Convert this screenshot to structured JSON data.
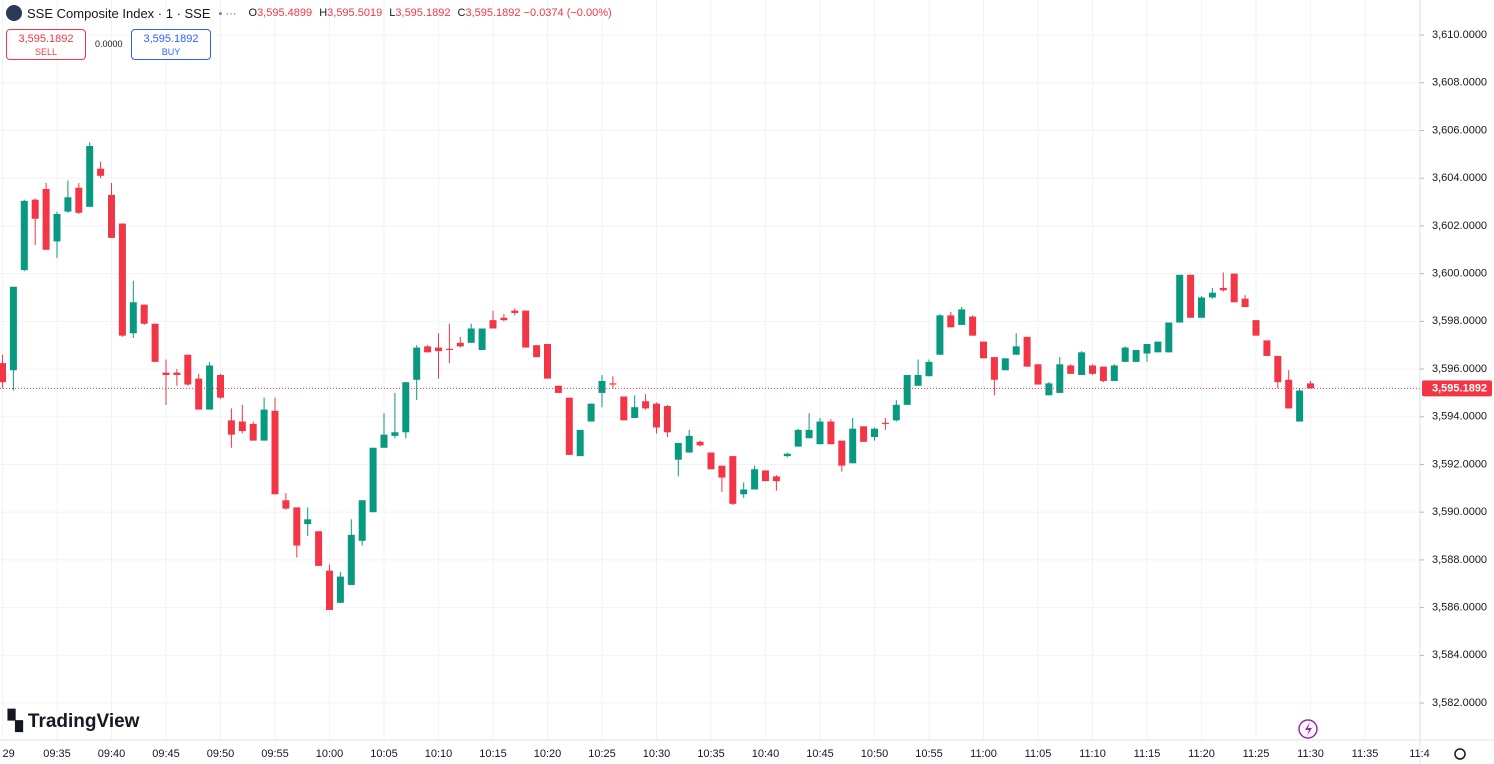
{
  "header": {
    "title": "SSE Composite Index · 1 · SSE",
    "ohlc": [
      {
        "key": "O",
        "value": "3,595.4899"
      },
      {
        "key": "H",
        "value": "3,595.5019"
      },
      {
        "key": "L",
        "value": "3,595.1892"
      },
      {
        "key": "C",
        "value": "3,595.1892"
      }
    ],
    "change": "−0.0374 (−0.00%)"
  },
  "trade": {
    "sell_price": "3,595.1892",
    "sell": "SELL",
    "spread": "0.0000",
    "buy_price": "3,595.1892",
    "buy": "BUY"
  },
  "watermark": "TradingView",
  "chart_data": {
    "type": "candlestick",
    "categories": [
      "29",
      null,
      null,
      null,
      null,
      "09:35",
      null,
      null,
      null,
      null,
      "09:40",
      null,
      null,
      null,
      null,
      "09:45",
      null,
      null,
      null,
      null,
      "09:50",
      null,
      null,
      null,
      null,
      "09:55",
      null,
      null,
      null,
      null,
      "10:00",
      null,
      null,
      null,
      null,
      "10:05",
      null,
      null,
      null,
      null,
      "10:10",
      null,
      null,
      null,
      null,
      "10:15",
      null,
      null,
      null,
      null,
      "10:20",
      null,
      null,
      null,
      null,
      "10:25",
      null,
      null,
      null,
      null,
      "10:30",
      null,
      null,
      null,
      null,
      "10:35",
      null,
      null,
      null,
      null,
      "10:40",
      null,
      null,
      null,
      null,
      "10:45",
      null,
      null,
      null,
      null,
      "10:50",
      null,
      null,
      null,
      null,
      "10:55",
      null,
      null,
      null,
      null,
      "11:00",
      null,
      null,
      null,
      null,
      "11:05",
      null,
      null,
      null,
      null,
      "11:10",
      null,
      null,
      null,
      null,
      "11:15",
      null,
      null,
      null,
      null,
      "11:20",
      null,
      null,
      null,
      null,
      "11:25",
      null,
      null,
      null,
      null,
      "11:30",
      null,
      null,
      null,
      null,
      "11:35",
      null,
      null,
      null,
      null,
      "11:4"
    ],
    "open": [
      3596.25,
      3595.95,
      3600.15,
      3603.1,
      3603.55,
      3601.35,
      3602.6,
      3603.6,
      3602.8,
      3604.4,
      3603.3,
      3602.1,
      3597.5,
      3598.7,
      3597.9,
      3595.85,
      3595.85,
      3596.6,
      3595.6,
      3594.3,
      3595.75,
      3593.85,
      3593.8,
      3593.7,
      3593.0,
      3594.25,
      3590.5,
      3590.2,
      3589.5,
      3589.2,
      3587.55,
      3586.2,
      3586.95,
      3588.8,
      3590.0,
      3592.7,
      3593.2,
      3593.35,
      3595.55,
      3596.95,
      3596.9,
      3596.85,
      3597.1,
      3597.1,
      3596.8,
      3598.05,
      3598.15,
      3598.45,
      3598.45,
      3597.0,
      3597.05,
      3595.3,
      3594.8,
      3592.35,
      3593.8,
      3595.0,
      3595.4,
      3594.85,
      3593.95,
      3594.65,
      3594.55,
      3594.45,
      3592.2,
      3592.5,
      3592.95,
      3592.5,
      3591.95,
      3592.35,
      3590.75,
      3590.95,
      3591.75,
      3591.5,
      3592.35,
      3592.75,
      3593.1,
      3592.85,
      3593.8,
      3593.0,
      3592.05,
      3593.6,
      3593.15,
      3593.75,
      3593.85,
      3594.5,
      3595.3,
      3595.7,
      3596.6,
      3598.25,
      3597.85,
      3598.2,
      3597.15,
      3596.5,
      3595.95,
      3596.6,
      3597.35,
      3596.2,
      3594.9,
      3595.0,
      3596.15,
      3595.75,
      3596.15,
      3596.1,
      3595.5,
      3596.3,
      3596.3,
      3596.65,
      3596.7,
      3596.7,
      3597.95,
      3599.95,
      3598.15,
      3599.0,
      3599.4,
      3600.0,
      3598.95,
      3598.05,
      3597.2,
      3596.55,
      3595.55,
      3593.8,
      3595.4,
      null,
      null,
      null,
      null,
      null,
      null,
      null,
      null,
      null,
      null
    ],
    "high": [
      3596.6,
      3599.45,
      3603.1,
      3603.15,
      3603.8,
      3602.6,
      3603.9,
      3603.8,
      3605.5,
      3604.7,
      3603.8,
      3602.1,
      3599.7,
      3598.7,
      3597.9,
      3596.4,
      3596.0,
      3596.6,
      3595.8,
      3596.3,
      3595.8,
      3594.35,
      3594.5,
      3593.8,
      3594.8,
      3594.8,
      3590.8,
      3590.2,
      3590.2,
      3589.2,
      3587.8,
      3587.5,
      3589.7,
      3590.5,
      3592.7,
      3594.15,
      3595.0,
      3595.45,
      3597.0,
      3597.0,
      3597.5,
      3597.9,
      3597.35,
      3597.9,
      3597.7,
      3598.45,
      3598.3,
      3598.55,
      3598.45,
      3597.0,
      3597.05,
      3595.3,
      3594.8,
      3593.45,
      3594.55,
      3595.75,
      3595.7,
      3594.85,
      3594.9,
      3594.95,
      3594.6,
      3594.5,
      3592.9,
      3593.45,
      3593.0,
      3592.5,
      3591.95,
      3592.35,
      3591.25,
      3591.95,
      3591.75,
      3591.55,
      3592.5,
      3593.5,
      3594.15,
      3593.95,
      3593.9,
      3593.0,
      3593.95,
      3593.6,
      3593.55,
      3593.95,
      3594.7,
      3595.75,
      3596.4,
      3596.4,
      3598.3,
      3598.4,
      3598.6,
      3598.25,
      3597.15,
      3596.5,
      3596.45,
      3597.5,
      3597.35,
      3596.2,
      3595.45,
      3596.5,
      3596.2,
      3596.75,
      3596.2,
      3596.1,
      3596.2,
      3596.95,
      3596.8,
      3597.05,
      3597.15,
      3597.95,
      3599.95,
      3599.95,
      3599.05,
      3599.4,
      3600.05,
      3600.0,
      3599.1,
      3598.05,
      3597.2,
      3596.55,
      3595.95,
      3595.2,
      3595.5,
      null,
      null,
      null,
      null,
      null,
      null,
      null,
      null,
      null,
      null
    ],
    "low": [
      3595.2,
      3595.1,
      3600.1,
      3601.2,
      3601.0,
      3600.65,
      3602.55,
      3602.5,
      3602.8,
      3604.0,
      3601.5,
      3597.35,
      3597.3,
      3597.85,
      3596.3,
      3594.5,
      3595.3,
      3595.3,
      3594.3,
      3594.3,
      3594.75,
      3592.7,
      3593.3,
      3593.0,
      3593.0,
      3590.75,
      3590.1,
      3588.1,
      3589.0,
      3587.75,
      3585.9,
      3586.2,
      3586.95,
      3588.6,
      3590.0,
      3592.7,
      3593.1,
      3593.1,
      3594.7,
      3596.7,
      3595.6,
      3596.25,
      3596.9,
      3597.1,
      3596.8,
      3597.7,
      3598.0,
      3598.25,
      3596.9,
      3596.5,
      3595.6,
      3595.0,
      3592.4,
      3592.35,
      3593.8,
      3594.4,
      3595.2,
      3593.85,
      3593.95,
      3594.3,
      3593.3,
      3593.15,
      3591.5,
      3592.5,
      3592.75,
      3591.8,
      3590.85,
      3590.3,
      3590.6,
      3590.95,
      3591.3,
      3590.9,
      3592.3,
      3592.75,
      3593.1,
      3592.85,
      3592.85,
      3591.7,
      3592.05,
      3592.95,
      3593.0,
      3593.45,
      3593.8,
      3594.5,
      3595.3,
      3595.7,
      3596.6,
      3597.75,
      3597.85,
      3597.4,
      3596.45,
      3594.9,
      3595.95,
      3596.6,
      3596.1,
      3595.35,
      3594.9,
      3595.0,
      3595.8,
      3595.75,
      3595.75,
      3595.45,
      3595.5,
      3596.3,
      3596.3,
      3596.3,
      3596.7,
      3596.7,
      3597.95,
      3598.15,
      3598.15,
      3598.95,
      3599.25,
      3598.8,
      3598.6,
      3597.4,
      3596.55,
      3595.2,
      3594.35,
      3593.8,
      3595.19,
      null,
      null,
      null,
      null,
      null,
      null,
      null,
      null,
      null,
      null
    ],
    "close": [
      3595.45,
      3599.45,
      3603.05,
      3602.3,
      3601.0,
      3602.5,
      3603.2,
      3602.55,
      3605.35,
      3604.1,
      3601.5,
      3597.4,
      3598.8,
      3597.9,
      3596.3,
      3595.75,
      3595.75,
      3595.35,
      3594.3,
      3596.15,
      3594.8,
      3593.25,
      3593.4,
      3593.0,
      3594.3,
      3590.75,
      3590.15,
      3588.6,
      3589.7,
      3587.75,
      3585.9,
      3587.3,
      3589.05,
      3590.5,
      3592.7,
      3593.25,
      3593.35,
      3595.45,
      3596.9,
      3596.7,
      3596.75,
      3596.8,
      3596.95,
      3597.7,
      3597.7,
      3597.7,
      3598.05,
      3598.35,
      3596.9,
      3596.5,
      3595.6,
      3595.0,
      3592.4,
      3593.45,
      3594.55,
      3595.5,
      3595.35,
      3593.85,
      3594.4,
      3594.35,
      3593.55,
      3593.35,
      3592.9,
      3593.2,
      3592.8,
      3591.8,
      3591.45,
      3590.35,
      3590.95,
      3591.8,
      3591.3,
      3591.3,
      3592.45,
      3593.45,
      3593.45,
      3593.8,
      3592.85,
      3591.95,
      3593.5,
      3592.95,
      3593.5,
      3593.7,
      3594.5,
      3595.75,
      3595.75,
      3596.3,
      3598.25,
      3597.75,
      3598.5,
      3597.4,
      3596.45,
      3595.55,
      3596.45,
      3596.95,
      3596.1,
      3595.35,
      3595.4,
      3596.2,
      3595.8,
      3596.7,
      3595.8,
      3595.5,
      3596.15,
      3596.9,
      3596.8,
      3597.05,
      3597.15,
      3597.95,
      3599.95,
      3598.15,
      3599.0,
      3599.2,
      3599.3,
      3598.8,
      3598.6,
      3597.4,
      3596.55,
      3595.45,
      3594.35,
      3595.1,
      3595.19,
      null,
      null,
      null,
      null,
      null,
      null,
      null,
      null,
      null,
      null
    ],
    "up_color": "#089981",
    "down_color": "#f23645",
    "ylim": [
      3580.45,
      3611.47
    ],
    "yticks": [
      {
        "value": 3582,
        "label": "3,582.0000"
      },
      {
        "value": 3584,
        "label": "3,584.0000"
      },
      {
        "value": 3586,
        "label": "3,586.0000"
      },
      {
        "value": 3588,
        "label": "3,588.0000"
      },
      {
        "value": 3590,
        "label": "3,590.0000"
      },
      {
        "value": 3592,
        "label": "3,592.0000"
      },
      {
        "value": 3594,
        "label": "3,594.0000"
      },
      {
        "value": 3596,
        "label": "3,596.0000"
      },
      {
        "value": 3598,
        "label": "3,598.0000"
      },
      {
        "value": 3600,
        "label": "3,600.0000"
      },
      {
        "value": 3602,
        "label": "3,602.0000"
      },
      {
        "value": 3604,
        "label": "3,604.0000"
      },
      {
        "value": 3606,
        "label": "3,606.0000"
      },
      {
        "value": 3608,
        "label": "3,608.0000"
      },
      {
        "value": 3610,
        "label": "3,610.0000"
      }
    ],
    "last_price": {
      "value": 3595.1892,
      "label": "3,595.1892"
    },
    "grid": true
  }
}
